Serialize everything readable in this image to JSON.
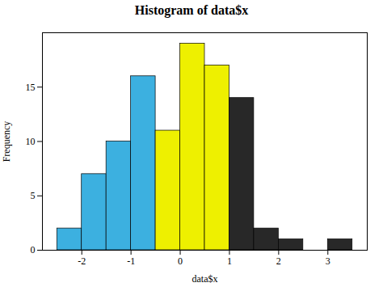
{
  "chart_data": {
    "type": "histogram",
    "title": "Histogram of data$x",
    "xlabel": "data$x",
    "ylabel": "Frequency",
    "bins": [
      -2.5,
      -2.0,
      -1.5,
      -1.0,
      -0.5,
      0.0,
      0.5,
      1.0,
      1.5,
      2.0,
      2.5,
      3.0,
      3.5
    ],
    "values": [
      2,
      7,
      10,
      16,
      11,
      19,
      17,
      14,
      2,
      1,
      0,
      1
    ],
    "colors": [
      "#3cb0e0",
      "#3cb0e0",
      "#3cb0e0",
      "#3cb0e0",
      "#eef000",
      "#eef000",
      "#eef000",
      "#282828",
      "#282828",
      "#282828",
      "#282828",
      "#282828"
    ],
    "xlim": [
      -2.8,
      3.8
    ],
    "xticks": [
      -2,
      -1,
      0,
      1,
      2,
      3
    ],
    "ylim": [
      0,
      20
    ],
    "yticks": [
      0,
      5,
      10,
      15
    ]
  }
}
